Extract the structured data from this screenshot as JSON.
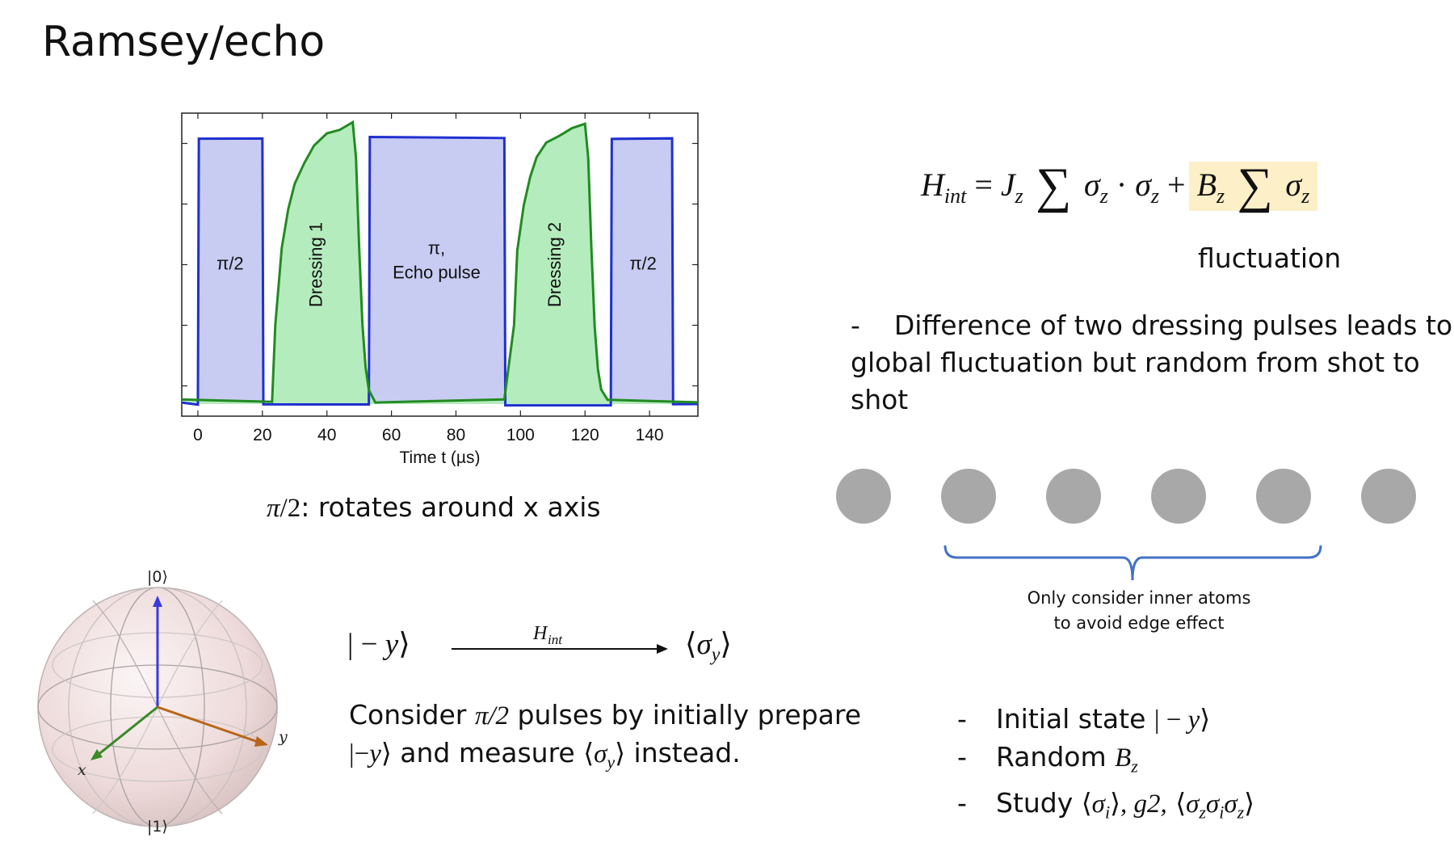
{
  "slide": {
    "title": "Ramsey/echo"
  },
  "chart_data": {
    "type": "line",
    "title": "",
    "xlabel": "Time t (µs)",
    "ylabel": "",
    "xlim": [
      -5,
      155
    ],
    "ylim": [
      0,
      1
    ],
    "x_ticks": [
      "0",
      "20",
      "40",
      "60",
      "80",
      "100",
      "120",
      "140"
    ],
    "grid": false,
    "series": [
      {
        "color": "#1f2fd0",
        "fill": "#c8ccf2",
        "x": [
          -5,
          0,
          0.3,
          20,
          20.3,
          53,
          53.3,
          95,
          95.3,
          128,
          128.3,
          147,
          147.3,
          155
        ],
        "y": [
          0.04,
          0.04,
          0.92,
          0.92,
          0.04,
          0.04,
          0.92,
          0.92,
          0.04,
          0.04,
          0.92,
          0.92,
          0.04,
          0.04
        ]
      },
      {
        "color": "#228b22",
        "fill": "#b5ecbd",
        "x": [
          -5,
          23,
          24,
          26,
          28,
          30,
          33,
          36,
          40,
          44,
          48,
          49,
          50,
          51,
          52,
          53,
          55,
          95,
          98,
          99,
          101,
          103,
          105,
          108,
          112,
          116,
          120,
          121,
          122,
          123,
          124,
          125,
          127,
          155
        ],
        "y": [
          0.05,
          0.05,
          0.3,
          0.55,
          0.68,
          0.77,
          0.84,
          0.89,
          0.93,
          0.95,
          0.97,
          0.85,
          0.55,
          0.3,
          0.16,
          0.09,
          0.05,
          0.05,
          0.3,
          0.55,
          0.7,
          0.79,
          0.85,
          0.9,
          0.93,
          0.95,
          0.96,
          0.85,
          0.55,
          0.3,
          0.16,
          0.09,
          0.05,
          0.05
        ]
      }
    ],
    "annotations": [
      {
        "text": "π/2",
        "x": 10,
        "y": 0.5
      },
      {
        "text": "Dressing 1",
        "x": 37,
        "y": 0.5,
        "rotate": -90
      },
      {
        "text": "π,",
        "x": 74,
        "y": 0.55
      },
      {
        "text": "Echo pulse",
        "x": 74,
        "y": 0.47
      },
      {
        "text": "Dressing 2",
        "x": 111,
        "y": 0.5,
        "rotate": -90
      },
      {
        "text": "π/2",
        "x": 138,
        "y": 0.5
      }
    ]
  },
  "hamiltonian": {
    "fluctuation_label": "fluctuation"
  },
  "notes": {
    "dash": "-",
    "difference_line1": "Difference of two dressing pulses leads to",
    "difference_line2": "global fluctuation but random from shot to shot",
    "pi_half_caption": ": rotates around x axis",
    "consider_line1_a": "Consider ",
    "consider_line1_b": " pulses by initially prepare",
    "consider_line2": " and measure ",
    "consider_line2_end": " instead."
  },
  "bloch": {
    "ket0": "|0⟩",
    "ket1": "|1⟩",
    "axis_x": "x",
    "axis_y": "y"
  },
  "atoms": {
    "count": 6,
    "brace_label_line1": "Only consider inner atoms",
    "brace_label_line2": "to avoid edge effect"
  },
  "study": {
    "item1": "Initial state",
    "item2": "Random",
    "item3": "Study",
    "g2": "g2,"
  },
  "colors": {
    "blue_trace": "#1f2fd0",
    "blue_fill": "#c8ccf2",
    "green_trace": "#228b22",
    "green_fill": "#b5ecbd",
    "highlight": "#fdefc7",
    "atom": "#a8a8a8",
    "brace": "#4472c4",
    "arrow_z": "#3a3adf",
    "arrow_x": "#3a8a2a",
    "arrow_y": "#b8661a"
  }
}
